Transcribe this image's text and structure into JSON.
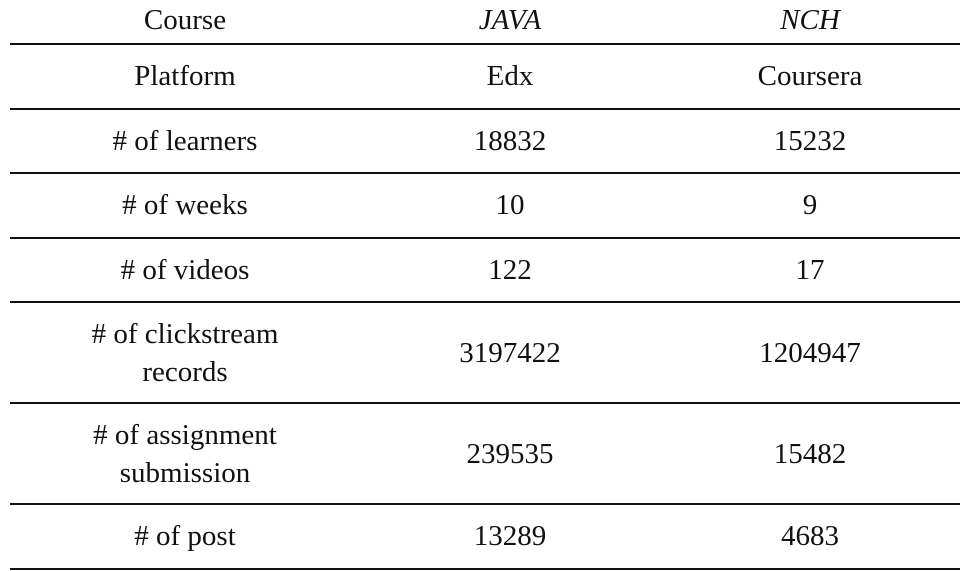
{
  "table": {
    "header": {
      "label": "Course",
      "java": "JAVA",
      "nch": "NCH"
    },
    "rows": [
      {
        "label": "Platform",
        "java": "Edx",
        "nch": "Coursera"
      },
      {
        "label": "# of learners",
        "java": "18832",
        "nch": "15232"
      },
      {
        "label": "# of weeks",
        "java": "10",
        "nch": "9"
      },
      {
        "label": "# of videos",
        "java": "122",
        "nch": "17"
      },
      {
        "label_line1": "# of clickstream",
        "label_line2": "records",
        "java": "3197422",
        "nch": "1204947"
      },
      {
        "label_line1": "# of assignment",
        "label_line2": "submission",
        "java": "239535",
        "nch": "15482"
      },
      {
        "label": "# of post",
        "java": "13289",
        "nch": "4683"
      }
    ]
  }
}
